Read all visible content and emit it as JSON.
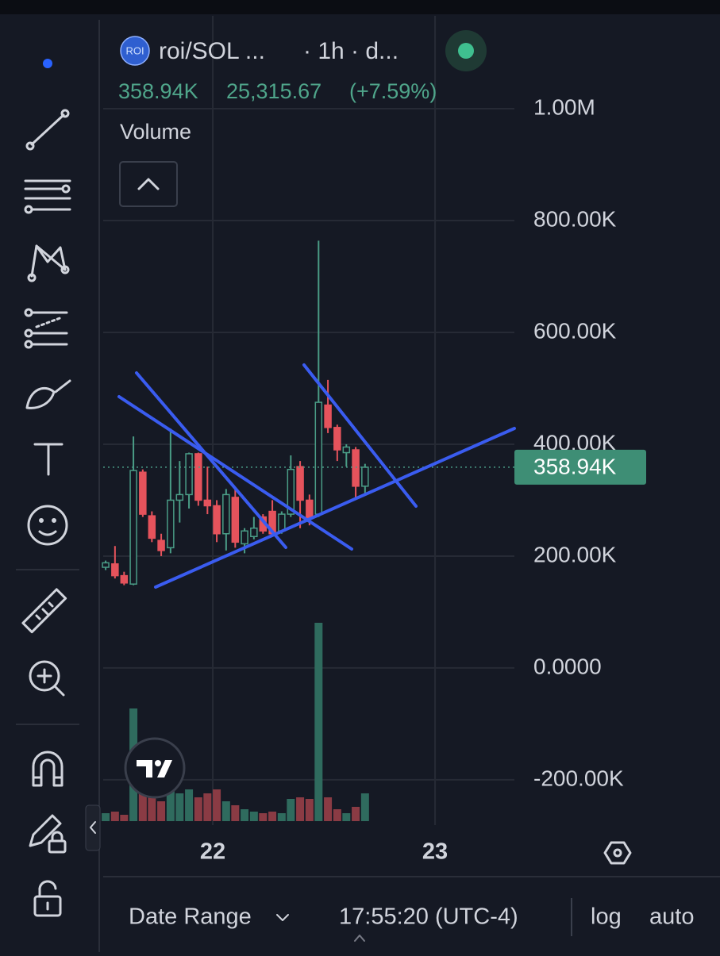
{
  "header": {
    "logo": "ROI",
    "symbol": "roi/SOL ...",
    "interval": "· 1h · d...",
    "volume_label": "Volume"
  },
  "legend_values": {
    "change": "25,315.67",
    "change_pct": "(+7.59%)"
  },
  "chart_data": {
    "type": "candlestick",
    "last_price_label": "358.94K",
    "x": [
      21.518,
      21.56,
      21.601,
      21.643,
      21.685,
      21.726,
      21.768,
      21.81,
      21.851,
      21.893,
      21.935,
      21.976,
      22.018,
      22.06,
      22.101,
      22.143,
      22.185,
      22.226,
      22.268,
      22.31,
      22.351,
      22.393,
      22.435,
      22.476,
      22.518,
      22.56,
      22.601,
      22.643,
      22.685
    ],
    "open": [
      180000,
      186000,
      165000,
      150000,
      350000,
      272000,
      228000,
      215000,
      300000,
      310000,
      383000,
      300000,
      290000,
      240000,
      305000,
      222000,
      235000,
      270000,
      280000,
      245000,
      275000,
      360000,
      300000,
      275000,
      470000,
      430000,
      385000,
      390000,
      325000
    ],
    "high": [
      192000,
      218000,
      172000,
      414000,
      355000,
      280000,
      240000,
      428000,
      370000,
      385000,
      385000,
      360000,
      300000,
      320000,
      320000,
      250000,
      270000,
      275000,
      300000,
      280000,
      380000,
      370000,
      310000,
      764000,
      515000,
      435000,
      400000,
      395000,
      365000
    ],
    "low": [
      175000,
      160000,
      148000,
      148000,
      270000,
      225000,
      200000,
      205000,
      260000,
      285000,
      290000,
      275000,
      225000,
      210000,
      215000,
      205000,
      230000,
      240000,
      235000,
      240000,
      270000,
      250000,
      255000,
      270000,
      420000,
      370000,
      360000,
      305000,
      310000
    ],
    "close": [
      188000,
      165000,
      152000,
      353000,
      275000,
      232000,
      210000,
      300000,
      310000,
      383000,
      300000,
      290000,
      240000,
      310000,
      225000,
      245000,
      250000,
      245000,
      240000,
      275000,
      355000,
      300000,
      268000,
      475000,
      430000,
      390000,
      395000,
      325000,
      358940
    ],
    "volume": [
      10,
      12,
      8,
      142,
      35,
      30,
      25,
      45,
      35,
      40,
      30,
      35,
      40,
      25,
      20,
      15,
      12,
      10,
      12,
      10,
      28,
      30,
      28,
      250,
      30,
      15,
      10,
      18,
      35
    ],
    "up_color": "#4a9c86",
    "down_color": "#e5535c",
    "volume_up_color": "#2f6b5e",
    "volume_down_color": "#8a3b44",
    "ylim": [
      -281000,
      1166000
    ],
    "yticks": [
      {
        "value": -200000,
        "label": "-200.00K"
      },
      {
        "value": 0,
        "label": "0.0000"
      },
      {
        "value": 200000,
        "label": "200.00K"
      },
      {
        "value": 400000,
        "label": "400.00K"
      },
      {
        "value": 600000,
        "label": "600.00K"
      },
      {
        "value": 800000,
        "label": "800.00K"
      },
      {
        "value": 1000000,
        "label": "1.00M"
      }
    ],
    "xlim": [
      21.507,
      23.357
    ],
    "xticks": [
      22,
      23
    ],
    "grid": true
  },
  "bottom_bar": {
    "date_range": "Date Range",
    "clock": "17:55:20 (UTC-4)",
    "log": "log",
    "auto": "auto"
  }
}
